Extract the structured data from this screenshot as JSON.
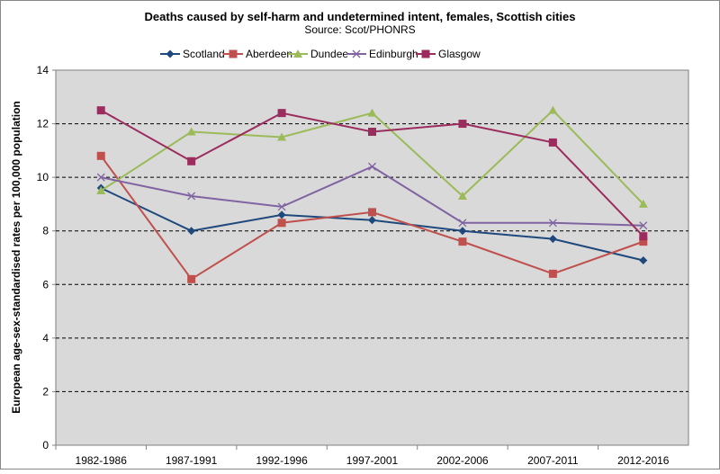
{
  "chart_data": {
    "type": "line",
    "title": "Deaths caused by self-harm and undetermined intent, females, Scottish cities",
    "subtitle": "Source: Scot/PHONRS",
    "xlabel": "",
    "ylabel": "European age-sex-standardised rates per 100,000 population",
    "ylim": [
      0,
      14
    ],
    "yticks": [
      "0",
      "2",
      "4",
      "6",
      "8",
      "10",
      "12",
      "14"
    ],
    "grid": true,
    "legend_placement": "top",
    "categories": [
      "1982-1986",
      "1987-1991",
      "1992-1996",
      "1997-2001",
      "2002-2006",
      "2007-2011",
      "2012-2016"
    ],
    "series": [
      {
        "name": "Scotland",
        "color": "#1F497D",
        "marker": "diamond",
        "values": [
          9.6,
          8.0,
          8.6,
          8.4,
          8.0,
          7.7,
          6.9
        ]
      },
      {
        "name": "Aberdeen",
        "color": "#C0504D",
        "marker": "square",
        "values": [
          10.8,
          6.2,
          8.3,
          8.7,
          7.6,
          6.4,
          7.6
        ]
      },
      {
        "name": "Dundee",
        "color": "#9BBB59",
        "marker": "triangle",
        "values": [
          9.5,
          11.7,
          11.5,
          12.4,
          9.3,
          12.5,
          9.0
        ]
      },
      {
        "name": "Edinburgh",
        "color": "#8064A2",
        "marker": "x",
        "values": [
          10.0,
          9.3,
          8.9,
          10.4,
          8.3,
          8.3,
          8.2
        ]
      },
      {
        "name": "Glasgow",
        "color": "#9B2D5E",
        "marker": "square",
        "values": [
          12.5,
          10.6,
          12.4,
          11.7,
          12.0,
          11.3,
          7.8
        ]
      }
    ],
    "plot_background": "#D9D9D9"
  }
}
